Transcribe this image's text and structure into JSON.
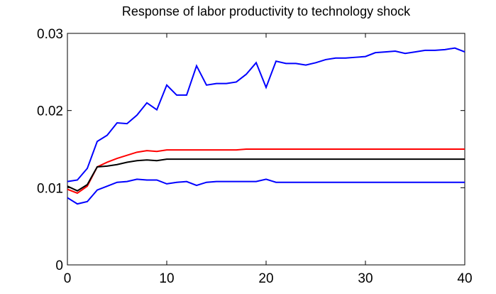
{
  "chart_data": {
    "type": "line",
    "title": "Response of labor productivity to technology shock",
    "x": [
      0,
      1,
      2,
      3,
      4,
      5,
      6,
      7,
      8,
      9,
      10,
      11,
      12,
      13,
      14,
      15,
      16,
      17,
      18,
      19,
      20,
      21,
      22,
      23,
      24,
      25,
      26,
      27,
      28,
      29,
      30,
      31,
      32,
      33,
      34,
      35,
      36,
      37,
      38,
      39,
      40
    ],
    "series": [
      {
        "color": "#0000ff",
        "values": [
          0.0108,
          0.011,
          0.0125,
          0.016,
          0.0168,
          0.0184,
          0.0183,
          0.0194,
          0.021,
          0.0201,
          0.0233,
          0.022,
          0.022,
          0.0258,
          0.0233,
          0.0235,
          0.0235,
          0.0237,
          0.0247,
          0.0262,
          0.023,
          0.0264,
          0.0261,
          0.0261,
          0.0259,
          0.0262,
          0.0266,
          0.0268,
          0.0268,
          0.0269,
          0.027,
          0.0275,
          0.0276,
          0.0277,
          0.0274,
          0.0276,
          0.0278,
          0.0278,
          0.0279,
          0.0281,
          0.0276
        ]
      },
      {
        "color": "#ff0000",
        "values": [
          0.0098,
          0.0093,
          0.0102,
          0.0127,
          0.0133,
          0.0138,
          0.0142,
          0.0146,
          0.0148,
          0.0147,
          0.0149,
          0.0149,
          0.0149,
          0.0149,
          0.0149,
          0.0149,
          0.0149,
          0.0149,
          0.015,
          0.015,
          0.015,
          0.015,
          0.015,
          0.015,
          0.015,
          0.015,
          0.015,
          0.015,
          0.015,
          0.015,
          0.015,
          0.015,
          0.015,
          0.015,
          0.015,
          0.015,
          0.015,
          0.015,
          0.015,
          0.015,
          0.015
        ]
      },
      {
        "color": "#000000",
        "values": [
          0.0102,
          0.0096,
          0.0104,
          0.0127,
          0.0128,
          0.013,
          0.0133,
          0.0135,
          0.0136,
          0.0135,
          0.0137,
          0.0137,
          0.0137,
          0.0137,
          0.0137,
          0.0137,
          0.0137,
          0.0137,
          0.0137,
          0.0137,
          0.0137,
          0.0137,
          0.0137,
          0.0137,
          0.0137,
          0.0137,
          0.0137,
          0.0137,
          0.0137,
          0.0137,
          0.0137,
          0.0137,
          0.0137,
          0.0137,
          0.0137,
          0.0137,
          0.0137,
          0.0137,
          0.0137,
          0.0137,
          0.0137
        ]
      },
      {
        "color": "#0000ff",
        "values": [
          0.0087,
          0.0079,
          0.0082,
          0.0097,
          0.0102,
          0.0107,
          0.0108,
          0.0111,
          0.011,
          0.011,
          0.0105,
          0.0107,
          0.0108,
          0.0103,
          0.0107,
          0.0108,
          0.0108,
          0.0108,
          0.0108,
          0.0108,
          0.0111,
          0.0107,
          0.0107,
          0.0107,
          0.0107,
          0.0107,
          0.0107,
          0.0107,
          0.0107,
          0.0107,
          0.0107,
          0.0107,
          0.0107,
          0.0107,
          0.0107,
          0.0107,
          0.0107,
          0.0107,
          0.0107,
          0.0107,
          0.0107
        ]
      }
    ],
    "xlim": [
      0,
      40
    ],
    "xticks": [
      0,
      10,
      20,
      30,
      40
    ],
    "ylim": [
      0,
      0.03
    ],
    "yticks": [
      0,
      0.01,
      0.02,
      0.03
    ],
    "grid": false
  }
}
